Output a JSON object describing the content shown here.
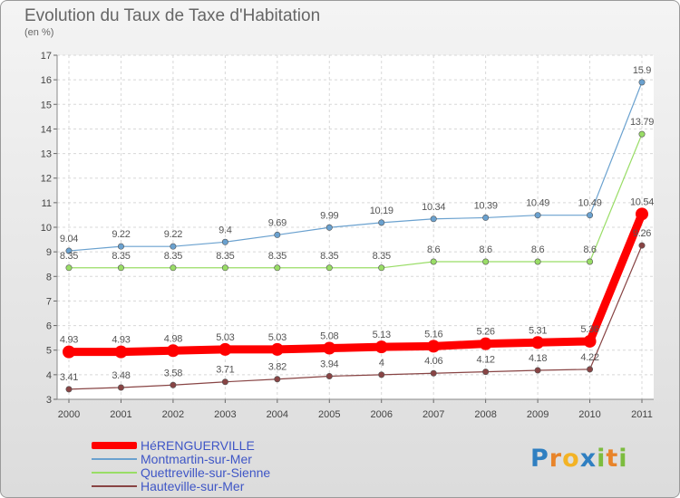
{
  "title": "Evolution du Taux de Taxe d'Habitation",
  "unit": "(en %)",
  "logo": {
    "text": "Proxiti",
    "letters": [
      "P",
      "r",
      "o",
      "x",
      "i",
      "t",
      "i"
    ],
    "colors": [
      "#2f7fc1",
      "#e8842a",
      "#f3b325",
      "#2f7fc1",
      "#7cbc3e",
      "#e8842a",
      "#7cbc3e"
    ]
  },
  "chart_data": {
    "type": "line",
    "x": [
      "2000",
      "2001",
      "2002",
      "2003",
      "2004",
      "2005",
      "2006",
      "2007",
      "2008",
      "2009",
      "2010",
      "2011"
    ],
    "ylim": [
      3,
      17
    ],
    "yticks": [
      3,
      4,
      5,
      6,
      7,
      8,
      9,
      10,
      11,
      12,
      13,
      14,
      15,
      16,
      17
    ],
    "grid": true,
    "legend_position": "bottom-left",
    "series": [
      {
        "name": "HéRENGUERVILLE",
        "color": "#ff0000",
        "width": 9,
        "values": [
          4.93,
          4.93,
          4.98,
          5.03,
          5.03,
          5.08,
          5.13,
          5.16,
          5.26,
          5.31,
          5.36,
          10.54
        ],
        "labels": [
          "4.93",
          "4.93",
          "4.98",
          "5.03",
          "5.03",
          "5.08",
          "5.13",
          "5.16",
          "5.26",
          "5.31",
          "5.36",
          "10.54"
        ]
      },
      {
        "name": "Montmartin-sur-Mer",
        "color": "#6aa1cf",
        "width": 1.2,
        "values": [
          9.04,
          9.22,
          9.22,
          9.4,
          9.69,
          9.99,
          10.19,
          10.34,
          10.39,
          10.49,
          10.49,
          15.9
        ],
        "labels": [
          "9.04",
          "9.22",
          "9.22",
          "9.4",
          "9.69",
          "9.99",
          "10.19",
          "10.34",
          "10.39",
          "10.49",
          "10.49",
          "15.9"
        ]
      },
      {
        "name": "Quettreville-sur-Sienne",
        "color": "#99dd66",
        "width": 1.2,
        "values": [
          8.35,
          8.35,
          8.35,
          8.35,
          8.35,
          8.35,
          8.35,
          8.6,
          8.6,
          8.6,
          8.6,
          13.79
        ],
        "labels": [
          "8.35",
          "8.35",
          "8.35",
          "8.35",
          "8.35",
          "8.35",
          "8.35",
          "8.6",
          "8.6",
          "8.6",
          "8.6",
          "13.79"
        ]
      },
      {
        "name": "Hauteville-sur-Mer",
        "color": "#884444",
        "width": 1.2,
        "values": [
          3.41,
          3.48,
          3.58,
          3.71,
          3.82,
          3.94,
          4,
          4.06,
          4.12,
          4.18,
          4.22,
          9.26
        ],
        "labels": [
          "3.41",
          "3.48",
          "3.58",
          "3.71",
          "3.82",
          "3.94",
          "4",
          "4.06",
          "4.12",
          "4.18",
          "4.22",
          "9.26"
        ]
      }
    ]
  }
}
